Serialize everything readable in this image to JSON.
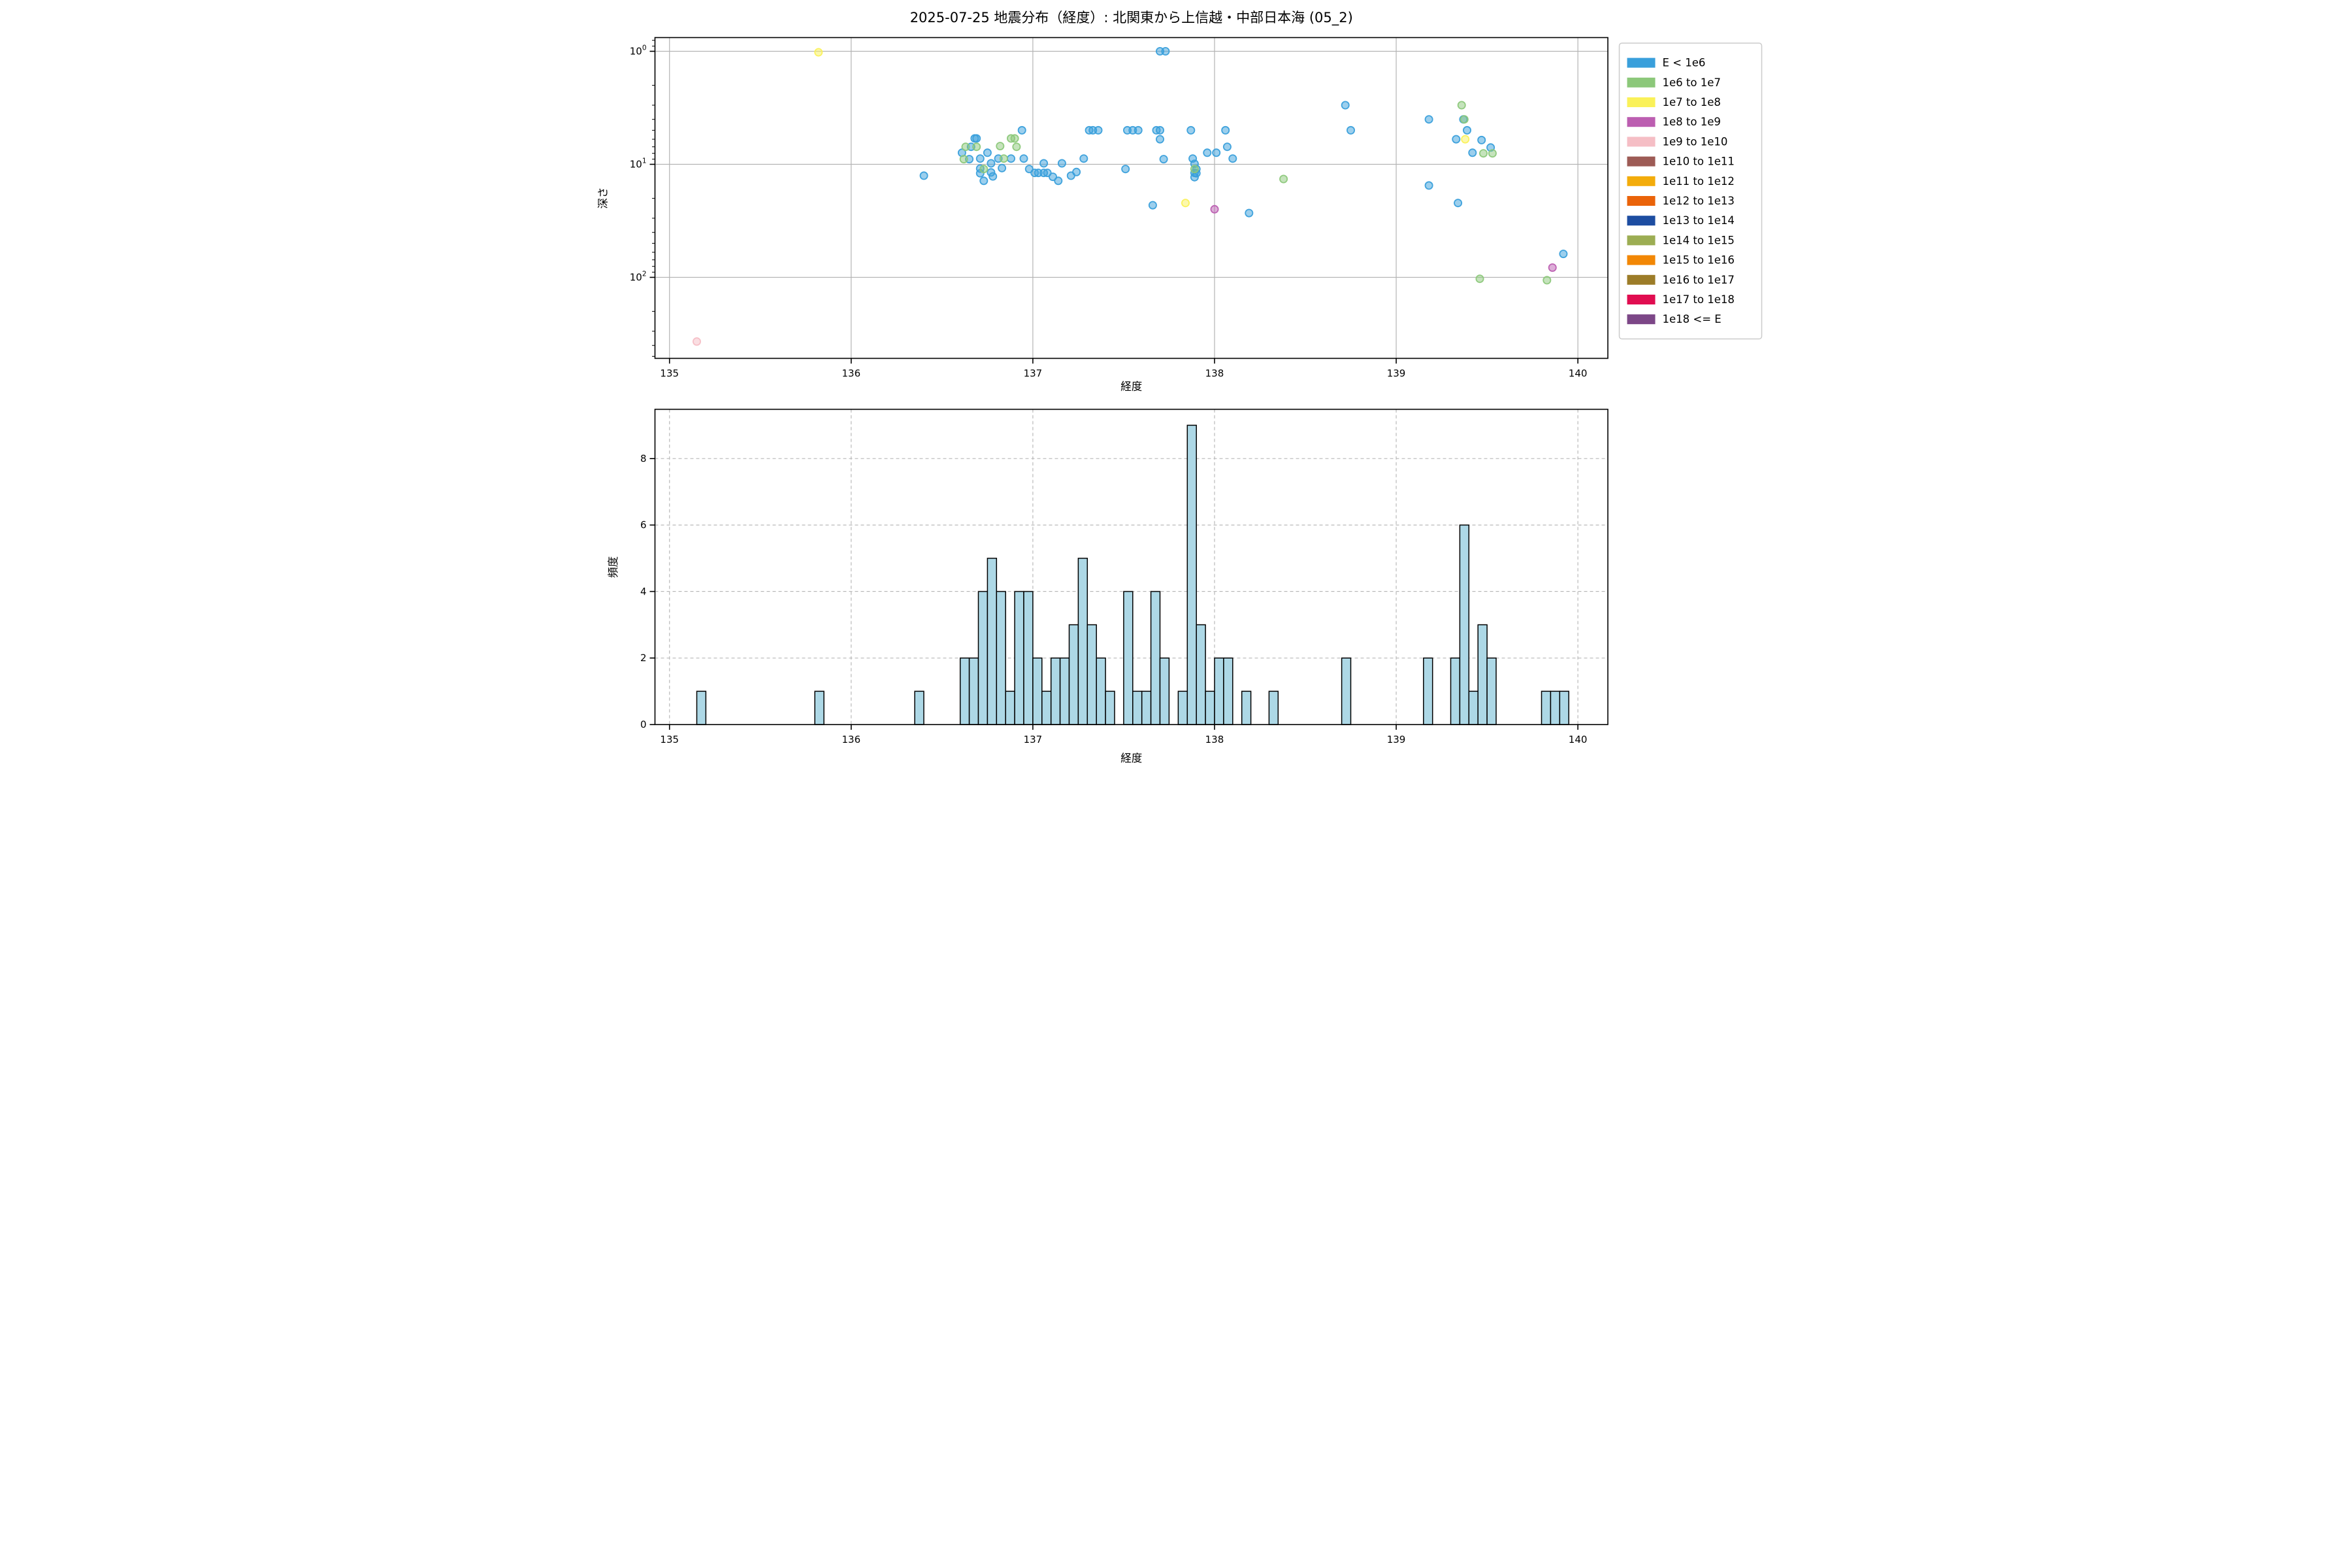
{
  "title": "2025-07-25 地震分布（経度）: 北関東から上信越・中部日本海 (05_2)",
  "legend": {
    "items": [
      {
        "label": "E < 1e6",
        "color": "#399fdb"
      },
      {
        "label": "1e6 to 1e7",
        "color": "#8cc87a"
      },
      {
        "label": "1e7 to 1e8",
        "color": "#faf159"
      },
      {
        "label": "1e8 to 1e9",
        "color": "#bc5eb1"
      },
      {
        "label": "1e9 to 1e10",
        "color": "#f5bec5"
      },
      {
        "label": "1e10 to 1e11",
        "color": "#9d5b55"
      },
      {
        "label": "1e11 to 1e12",
        "color": "#f3ac0b"
      },
      {
        "label": "1e12 to 1e13",
        "color": "#ea6309"
      },
      {
        "label": "1e13 to 1e14",
        "color": "#1d4da1"
      },
      {
        "label": "1e14 to 1e15",
        "color": "#9cad53"
      },
      {
        "label": "1e15 to 1e16",
        "color": "#f28705"
      },
      {
        "label": "1e16 to 1e17",
        "color": "#9c7c28"
      },
      {
        "label": "1e17 to 1e18",
        "color": "#e00d50"
      },
      {
        "label": "1e18 <= E",
        "color": "#7c4787"
      }
    ]
  },
  "chart_data": [
    {
      "type": "scatter",
      "title": "2025-07-25 地震分布（経度）: 北関東から上信越・中部日本海 (05_2)",
      "xlabel": "経度",
      "ylabel": "深さ",
      "xlim": [
        134.92,
        140.165
      ],
      "xticks": [
        135,
        136,
        137,
        138,
        139,
        140
      ],
      "y_scale": "log-inverted",
      "ylim_depth": [
        0.75,
        521
      ],
      "ytick_exponents": [
        0,
        1,
        2
      ],
      "grid": "solid",
      "legend_position": "outside-right-top",
      "series": [
        {
          "name": "E < 1e6",
          "color": "#399fdb",
          "points": [
            [
              136.4,
              12.6
            ],
            [
              136.61,
              7.9
            ],
            [
              136.65,
              9.0
            ],
            [
              136.66,
              7.0
            ],
            [
              136.68,
              5.9
            ],
            [
              136.69,
              5.9
            ],
            [
              136.71,
              8.9
            ],
            [
              136.71,
              10.9
            ],
            [
              136.71,
              12.0
            ],
            [
              136.73,
              14.0
            ],
            [
              136.75,
              7.9
            ],
            [
              136.77,
              9.8
            ],
            [
              136.77,
              11.8
            ],
            [
              136.78,
              12.8
            ],
            [
              136.81,
              8.9
            ],
            [
              136.83,
              10.8
            ],
            [
              136.88,
              8.9
            ],
            [
              136.94,
              5.0
            ],
            [
              136.95,
              8.9
            ],
            [
              136.98,
              11.0
            ],
            [
              137.01,
              11.9
            ],
            [
              137.03,
              11.9
            ],
            [
              137.06,
              9.8
            ],
            [
              137.06,
              11.9
            ],
            [
              137.08,
              11.9
            ],
            [
              137.11,
              12.9
            ],
            [
              137.14,
              14.0
            ],
            [
              137.16,
              9.8
            ],
            [
              137.21,
              12.6
            ],
            [
              137.24,
              11.7
            ],
            [
              137.28,
              8.9
            ],
            [
              137.31,
              5.0
            ],
            [
              137.33,
              5.0
            ],
            [
              137.36,
              5.0
            ],
            [
              137.51,
              11.0
            ],
            [
              137.52,
              5.0
            ],
            [
              137.55,
              5.0
            ],
            [
              137.58,
              5.0
            ],
            [
              137.66,
              23
            ],
            [
              137.68,
              5.0
            ],
            [
              137.7,
              5.0
            ],
            [
              137.7,
              6.0
            ],
            [
              137.7,
              1.0
            ],
            [
              137.73,
              1.0
            ],
            [
              137.72,
              9.0
            ],
            [
              137.87,
              5.0
            ],
            [
              137.88,
              8.9
            ],
            [
              137.89,
              9.9
            ],
            [
              137.9,
              11.0
            ],
            [
              137.89,
              11.9
            ],
            [
              137.9,
              12.0
            ],
            [
              137.89,
              13.0
            ],
            [
              137.96,
              7.9
            ],
            [
              138.01,
              7.9
            ],
            [
              138.06,
              5.0
            ],
            [
              138.07,
              7.0
            ],
            [
              138.1,
              8.9
            ],
            [
              138.19,
              27
            ],
            [
              138.72,
              3.0
            ],
            [
              138.75,
              5.0
            ],
            [
              139.18,
              4.0
            ],
            [
              139.18,
              15.4
            ],
            [
              139.33,
              6.0
            ],
            [
              139.34,
              22
            ],
            [
              139.37,
              4.0
            ],
            [
              139.39,
              5.0
            ],
            [
              139.42,
              7.9
            ],
            [
              139.47,
              6.1
            ],
            [
              139.52,
              7.1
            ],
            [
              139.92,
              62
            ]
          ]
        },
        {
          "name": "1e6 to 1e7",
          "color": "#8cc87a",
          "points": [
            [
              136.62,
              9.0
            ],
            [
              136.63,
              7.0
            ],
            [
              136.69,
              7.0
            ],
            [
              136.73,
              11.0
            ],
            [
              136.82,
              6.9
            ],
            [
              136.84,
              8.9
            ],
            [
              136.88,
              5.9
            ],
            [
              136.9,
              5.9
            ],
            [
              136.91,
              7.0
            ],
            [
              137.89,
              11.0
            ],
            [
              138.38,
              13.5
            ],
            [
              139.36,
              3.0
            ],
            [
              139.375,
              4.0
            ],
            [
              139.48,
              8.0
            ],
            [
              139.53,
              8.0
            ],
            [
              139.46,
              103
            ],
            [
              139.83,
              106
            ]
          ]
        },
        {
          "name": "1e7 to 1e8",
          "color": "#faf159",
          "points": [
            [
              135.82,
              1.02
            ],
            [
              137.84,
              22
            ],
            [
              139.38,
              6.0
            ]
          ]
        },
        {
          "name": "1e8 to 1e9",
          "color": "#bc5eb1",
          "points": [
            [
              138.0,
              25
            ],
            [
              139.86,
              82
            ]
          ]
        },
        {
          "name": "1e9 to 1e10",
          "color": "#f5bec5",
          "points": [
            [
              135.15,
              370
            ]
          ]
        }
      ]
    },
    {
      "type": "bar",
      "xlabel": "経度",
      "ylabel": "頻度",
      "xlim": [
        134.92,
        140.165
      ],
      "xticks": [
        135,
        136,
        137,
        138,
        139,
        140
      ],
      "ylim": [
        0,
        9.45
      ],
      "yticks": [
        0,
        2,
        4,
        6,
        8
      ],
      "grid": "dashed",
      "bar_color": "#add8e6",
      "bar_edge_color": "#000000",
      "bin_width": 0.05,
      "bars": [
        {
          "x": 135.175,
          "count": 1
        },
        {
          "x": 135.825,
          "count": 1
        },
        {
          "x": 136.375,
          "count": 1
        },
        {
          "x": 136.625,
          "count": 2
        },
        {
          "x": 136.675,
          "count": 2
        },
        {
          "x": 136.725,
          "count": 4
        },
        {
          "x": 136.775,
          "count": 5
        },
        {
          "x": 136.825,
          "count": 4
        },
        {
          "x": 136.875,
          "count": 1
        },
        {
          "x": 136.925,
          "count": 4
        },
        {
          "x": 136.975,
          "count": 4
        },
        {
          "x": 137.025,
          "count": 2
        },
        {
          "x": 137.075,
          "count": 1
        },
        {
          "x": 137.125,
          "count": 2
        },
        {
          "x": 137.175,
          "count": 2
        },
        {
          "x": 137.225,
          "count": 3
        },
        {
          "x": 137.275,
          "count": 5
        },
        {
          "x": 137.325,
          "count": 3
        },
        {
          "x": 137.375,
          "count": 2
        },
        {
          "x": 137.425,
          "count": 1
        },
        {
          "x": 137.525,
          "count": 4
        },
        {
          "x": 137.575,
          "count": 1
        },
        {
          "x": 137.625,
          "count": 1
        },
        {
          "x": 137.675,
          "count": 4
        },
        {
          "x": 137.725,
          "count": 2
        },
        {
          "x": 137.825,
          "count": 1
        },
        {
          "x": 137.875,
          "count": 9
        },
        {
          "x": 137.925,
          "count": 3
        },
        {
          "x": 137.975,
          "count": 1
        },
        {
          "x": 138.025,
          "count": 2
        },
        {
          "x": 138.075,
          "count": 2
        },
        {
          "x": 138.175,
          "count": 1
        },
        {
          "x": 138.325,
          "count": 1
        },
        {
          "x": 138.725,
          "count": 2
        },
        {
          "x": 139.175,
          "count": 2
        },
        {
          "x": 139.325,
          "count": 2
        },
        {
          "x": 139.375,
          "count": 6
        },
        {
          "x": 139.425,
          "count": 1
        },
        {
          "x": 139.475,
          "count": 3
        },
        {
          "x": 139.525,
          "count": 2
        },
        {
          "x": 139.825,
          "count": 1
        },
        {
          "x": 139.875,
          "count": 1
        },
        {
          "x": 139.925,
          "count": 1
        }
      ]
    }
  ]
}
